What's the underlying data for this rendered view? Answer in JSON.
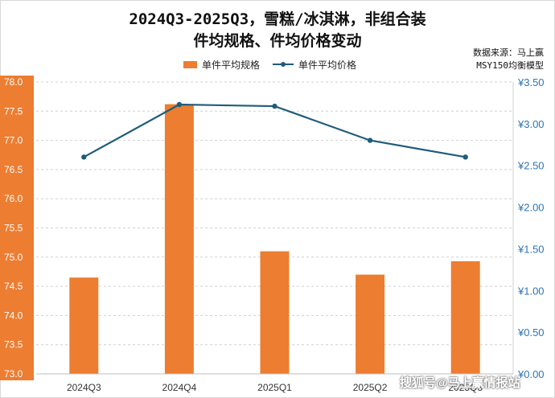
{
  "title_line1": "2024Q3-2025Q3，雪糕/冰淇淋，非组合装",
  "title_line2": "件均规格、件均价格变动",
  "source": "数据来源：马上赢",
  "model": "MSY150均衡模型",
  "watermark": "搜狐号@马上赢情报站",
  "colors": {
    "bar": "#ED7D31",
    "line": "#1F5C7A",
    "left_axis_bg": "#ED7D31",
    "right_axis_text": "#2E75B6"
  },
  "chart_data": {
    "type": "bar+line",
    "categories": [
      "2024Q3",
      "2024Q4",
      "2025Q1",
      "2025Q2",
      "2025Q3"
    ],
    "series": [
      {
        "name": "单件平均规格",
        "type": "bar",
        "axis": "left",
        "values": [
          74.65,
          77.62,
          75.1,
          74.7,
          74.93
        ]
      },
      {
        "name": "单件平均价格",
        "type": "line",
        "axis": "right",
        "values": [
          2.6,
          3.23,
          3.21,
          2.8,
          2.6
        ]
      }
    ],
    "left_axis": {
      "min": 73.0,
      "max": 78.0,
      "step": 0.5,
      "ticks": [
        "73.0",
        "73.5",
        "74.0",
        "74.5",
        "75.0",
        "75.5",
        "76.0",
        "76.5",
        "77.0",
        "77.5",
        "78.0"
      ]
    },
    "right_axis": {
      "min": 0,
      "max": 3.5,
      "step": 0.5,
      "ticks": [
        "¥0.00",
        "¥0.50",
        "¥1.00",
        "¥1.50",
        "¥2.00",
        "¥2.50",
        "¥3.00",
        "¥3.50"
      ]
    },
    "grid": true,
    "legend": "top-center"
  }
}
